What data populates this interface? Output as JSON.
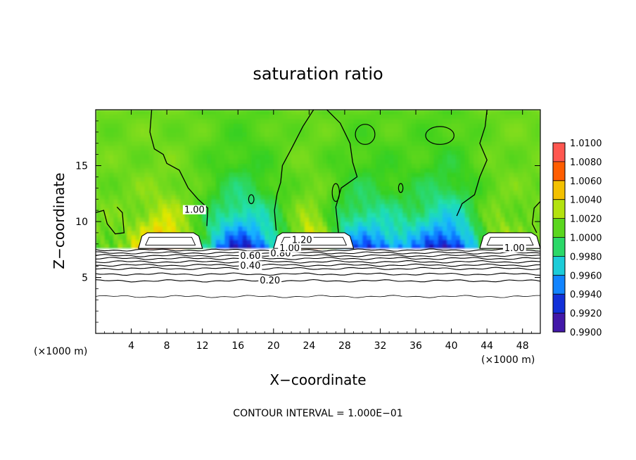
{
  "chart_data": {
    "type": "heatmap",
    "title": "saturation ratio",
    "xlabel": "X−coordinate",
    "ylabel": "Z−coordinate",
    "x_unit_left": "(×1000 m)",
    "x_unit_right": "(×1000 m)",
    "footer": "CONTOUR INTERVAL = 1.000E−01",
    "xlim": [
      0,
      50
    ],
    "ylim": [
      0,
      20
    ],
    "x_ticks": [
      4,
      8,
      12,
      16,
      20,
      24,
      28,
      32,
      36,
      40,
      44,
      48
    ],
    "y_ticks": [
      5,
      10,
      15
    ],
    "x_tick_labels": [
      "4",
      "8",
      "12",
      "16",
      "20",
      "24",
      "28",
      "32",
      "36",
      "40",
      "44",
      "48"
    ],
    "y_tick_labels": [
      "5",
      "10",
      "15"
    ],
    "colorbar": {
      "min": 0.99,
      "max": 1.01,
      "levels": [
        0.99,
        0.992,
        0.994,
        0.996,
        0.998,
        1.0,
        1.002,
        1.004,
        1.006,
        1.008,
        1.01
      ],
      "labels": [
        "0.9900",
        "0.9920",
        "0.9940",
        "0.9960",
        "0.9980",
        "1.0000",
        "1.0020",
        "1.0040",
        "1.0060",
        "1.0080",
        "1.0100"
      ],
      "colors": [
        "#6a1fa0",
        "#1a10b0",
        "#0a50ff",
        "#18b8ff",
        "#20e0b0",
        "#36d020",
        "#7edc1c",
        "#e8e800",
        "#ff9a00",
        "#ff2000",
        "#ff8fa0"
      ]
    },
    "contour_labels": [
      {
        "text": "0.20",
        "x": 19.6,
        "z": 4.6
      },
      {
        "text": "0.40",
        "x": 17.4,
        "z": 5.9
      },
      {
        "text": "0.60",
        "x": 17.4,
        "z": 6.8
      },
      {
        "text": "0.80",
        "x": 20.8,
        "z": 7.0
      },
      {
        "text": "1.00",
        "x": 21.8,
        "z": 7.5
      },
      {
        "text": "1.20",
        "x": 23.2,
        "z": 8.2
      },
      {
        "text": "1.00",
        "x": 47.1,
        "z": 7.5
      },
      {
        "text": "1.00",
        "x": 11.1,
        "z": 10.9
      }
    ]
  }
}
